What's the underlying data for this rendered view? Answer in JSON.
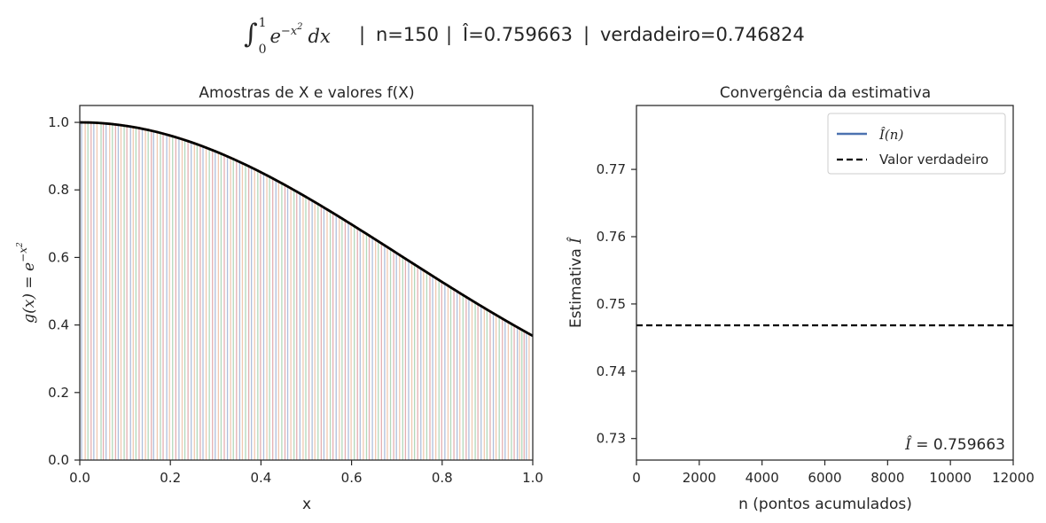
{
  "suptitle": {
    "integral_text": "∫₀¹ e^(−x²) dx",
    "parts": [
      "n=150",
      "Î=0.759663",
      "verdadeiro=0.746824"
    ]
  },
  "chart_data": [
    {
      "type": "line",
      "title": "Amostras de X e valores f(X)",
      "xlabel": "x",
      "ylabel": "g(x) = e^(−x²)",
      "xlim": [
        0,
        1
      ],
      "ylim": [
        0,
        1.05
      ],
      "xticks": [
        0.0,
        0.2,
        0.4,
        0.6,
        0.8,
        1.0
      ],
      "xtick_labels": [
        "0.0",
        "0.2",
        "0.4",
        "0.6",
        "0.8",
        "1.0"
      ],
      "yticks": [
        0.0,
        0.2,
        0.4,
        0.6,
        0.8,
        1.0
      ],
      "ytick_labels": [
        "0.0",
        "0.2",
        "0.4",
        "0.6",
        "0.8",
        "1.0"
      ],
      "function_curve": {
        "color": "#000000",
        "samples": 101
      },
      "sample_stems": {
        "colors": [
          "#4c72b0",
          "#dd8452",
          "#55a868",
          "#c44e52"
        ],
        "x": [
          0.004,
          0.012,
          0.018,
          0.025,
          0.031,
          0.038,
          0.047,
          0.052,
          0.058,
          0.066,
          0.072,
          0.079,
          0.085,
          0.091,
          0.098,
          0.104,
          0.112,
          0.118,
          0.124,
          0.131,
          0.138,
          0.145,
          0.151,
          0.158,
          0.163,
          0.171,
          0.178,
          0.184,
          0.192,
          0.198,
          0.205,
          0.212,
          0.219,
          0.226,
          0.232,
          0.239,
          0.246,
          0.253,
          0.259,
          0.266,
          0.272,
          0.279,
          0.286,
          0.293,
          0.299,
          0.306,
          0.312,
          0.319,
          0.326,
          0.333,
          0.339,
          0.346,
          0.353,
          0.359,
          0.366,
          0.373,
          0.379,
          0.386,
          0.393,
          0.399,
          0.406,
          0.413,
          0.419,
          0.426,
          0.433,
          0.439,
          0.446,
          0.453,
          0.459,
          0.466,
          0.473,
          0.479,
          0.486,
          0.493,
          0.499,
          0.506,
          0.513,
          0.519,
          0.526,
          0.533,
          0.539,
          0.546,
          0.553,
          0.559,
          0.566,
          0.573,
          0.579,
          0.586,
          0.593,
          0.599,
          0.606,
          0.613,
          0.619,
          0.626,
          0.633,
          0.639,
          0.646,
          0.653,
          0.659,
          0.666,
          0.673,
          0.679,
          0.686,
          0.693,
          0.699,
          0.706,
          0.713,
          0.719,
          0.726,
          0.733,
          0.739,
          0.746,
          0.753,
          0.759,
          0.766,
          0.773,
          0.779,
          0.786,
          0.793,
          0.799,
          0.806,
          0.813,
          0.819,
          0.826,
          0.833,
          0.839,
          0.846,
          0.853,
          0.859,
          0.866,
          0.873,
          0.879,
          0.886,
          0.893,
          0.899,
          0.906,
          0.913,
          0.919,
          0.926,
          0.933,
          0.939,
          0.946,
          0.953,
          0.959,
          0.966,
          0.971,
          0.976,
          0.981,
          0.986,
          0.992
        ]
      }
    },
    {
      "type": "line",
      "title": "Convergência da estimativa",
      "xlabel": "n (pontos acumulados)",
      "ylabel": "Estimativa Î",
      "xlim": [
        0,
        12000
      ],
      "ylim": [
        0.7268,
        0.7795
      ],
      "xticks": [
        0,
        2000,
        4000,
        6000,
        8000,
        10000,
        12000
      ],
      "xtick_labels": [
        "0",
        "2000",
        "4000",
        "6000",
        "8000",
        "10000",
        "12000"
      ],
      "yticks": [
        0.73,
        0.74,
        0.75,
        0.76,
        0.77
      ],
      "ytick_labels": [
        "0.73",
        "0.74",
        "0.75",
        "0.76",
        "0.77"
      ],
      "series": [
        {
          "name": "Î(n)",
          "color": "#4c72b0",
          "style": "solid",
          "x": [],
          "y": []
        },
        {
          "name": "Valor verdadeiro",
          "color": "#000000",
          "style": "dashed",
          "y_constant": 0.746824
        }
      ],
      "legend_position": "top-right",
      "annotation": "Î = 0.759663"
    }
  ]
}
